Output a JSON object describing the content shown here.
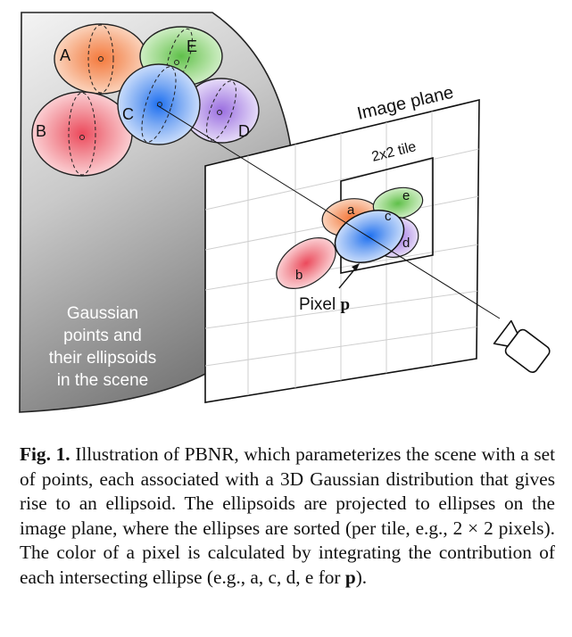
{
  "diagram": {
    "scene_label_lines": [
      "Gaussian",
      "points and",
      "their ellipsoids",
      "in the scene"
    ],
    "image_plane_label": "Image plane",
    "tile_label": "2x2 tile",
    "pixel_label": "Pixel",
    "pixel_symbol": "p",
    "ellipsoids": [
      "A",
      "E",
      "B",
      "C",
      "D"
    ],
    "ellipses": [
      "a",
      "e",
      "c",
      "d",
      "b"
    ],
    "colors": {
      "orange": "#f39a6a",
      "green": "#8fd27a",
      "red": "#f07b86",
      "blue": "#4f8ff0",
      "purple": "#b694e6"
    }
  },
  "caption": {
    "fig_label": "Fig. 1.",
    "text_a": "Illustration of PBNR, which parameterizes the scene with a set of points, each associated with a 3D Gaussian distribution that gives rise to an ellipsoid. The ellipsoids are projected to ellipses on the image plane, where the ellipses are sorted (per tile, e.g., 2 × 2 pixels). The color of a pixel is calculated by integrating the contribution of each intersecting ellipse (e.g., a, c, d, e for ",
    "pixel_symbol": "p",
    "text_b": ")."
  }
}
